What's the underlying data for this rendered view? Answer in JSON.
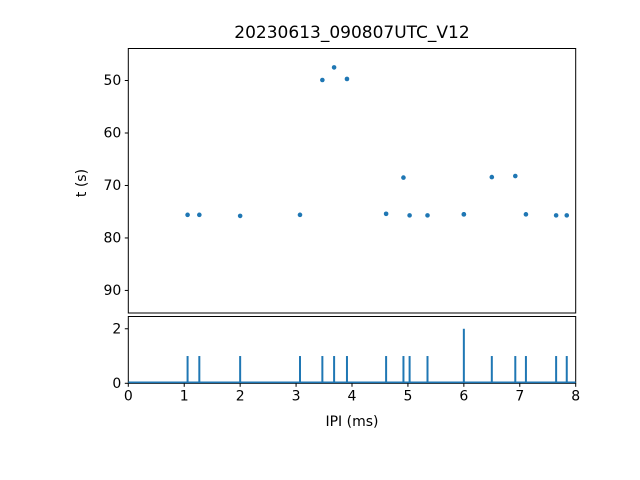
{
  "figure": {
    "background": "#ffffff",
    "accent_color": "#1f77b4",
    "spine_color": "#000000",
    "text_color": "#000000"
  },
  "chart_data": [
    {
      "type": "scatter",
      "title": "20230613_090807UTC_V12",
      "xlabel": "",
      "ylabel": "t (s)",
      "xlim": [
        0,
        8
      ],
      "ylim": [
        94.3,
        43.9
      ],
      "y_inverted": true,
      "yticks": [
        50,
        60,
        70,
        80,
        90
      ],
      "grid": false,
      "legend": "none",
      "marker_color": "#1f77b4",
      "points": [
        {
          "x": 1.06,
          "t": 75.6
        },
        {
          "x": 1.27,
          "t": 75.6
        },
        {
          "x": 2.0,
          "t": 75.8
        },
        {
          "x": 3.07,
          "t": 75.6
        },
        {
          "x": 3.47,
          "t": 49.9
        },
        {
          "x": 3.68,
          "t": 47.5
        },
        {
          "x": 3.91,
          "t": 49.7
        },
        {
          "x": 4.61,
          "t": 75.4
        },
        {
          "x": 4.92,
          "t": 68.5
        },
        {
          "x": 5.03,
          "t": 75.7
        },
        {
          "x": 5.35,
          "t": 75.7
        },
        {
          "x": 6.0,
          "t": 75.5
        },
        {
          "x": 6.0,
          "t": 75.5
        },
        {
          "x": 6.5,
          "t": 68.4
        },
        {
          "x": 6.92,
          "t": 68.2
        },
        {
          "x": 7.11,
          "t": 75.5
        },
        {
          "x": 7.65,
          "t": 75.7
        },
        {
          "x": 7.84,
          "t": 75.7
        }
      ]
    },
    {
      "type": "histogram",
      "subtype": "step-spikes",
      "xlabel": "IPI (ms)",
      "ylabel": "",
      "xlim": [
        0,
        8
      ],
      "ylim": [
        0,
        2.45
      ],
      "xticks": [
        0,
        1,
        2,
        3,
        4,
        5,
        6,
        7,
        8
      ],
      "yticks": [
        0,
        2
      ],
      "grid": false,
      "line_color": "#1f77b4",
      "bins": [
        {
          "x": 1.06,
          "count": 1
        },
        {
          "x": 1.27,
          "count": 1
        },
        {
          "x": 2.0,
          "count": 1
        },
        {
          "x": 3.07,
          "count": 1
        },
        {
          "x": 3.47,
          "count": 1
        },
        {
          "x": 3.68,
          "count": 1
        },
        {
          "x": 3.91,
          "count": 1
        },
        {
          "x": 4.61,
          "count": 1
        },
        {
          "x": 4.92,
          "count": 1
        },
        {
          "x": 5.03,
          "count": 1
        },
        {
          "x": 5.35,
          "count": 1
        },
        {
          "x": 6.0,
          "count": 2
        },
        {
          "x": 6.5,
          "count": 1
        },
        {
          "x": 6.92,
          "count": 1
        },
        {
          "x": 7.11,
          "count": 1
        },
        {
          "x": 7.65,
          "count": 1
        },
        {
          "x": 7.84,
          "count": 1
        }
      ]
    }
  ]
}
